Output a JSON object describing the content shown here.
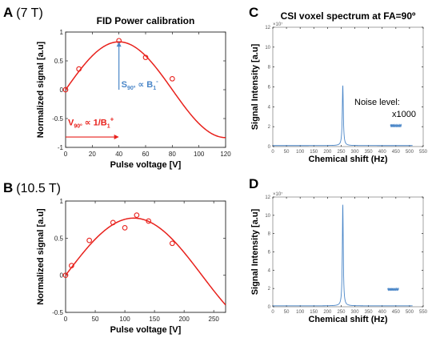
{
  "panels": {
    "A": {
      "letter": "A",
      "field": "(7 T)"
    },
    "B": {
      "letter": "B",
      "field": "(10.5 T)"
    },
    "C": {
      "letter": "C"
    },
    "D": {
      "letter": "D"
    }
  },
  "annotations": {
    "s90": "S",
    "s90_sub": "90º",
    "s90_tail": " ∝ B",
    "s90_sub2": "1",
    "s90_sup": "-",
    "v90": "V",
    "v90_sub": "90º",
    "v90_tail": " ∝ 1/B",
    "v90_sub2": "1",
    "v90_sup": "+",
    "noise_level": "Noise level:",
    "x1000": "x1000",
    "color_red": "#e8211c",
    "color_blue": "#4a86c8"
  },
  "chart_data": [
    {
      "id": "A",
      "type": "scatter",
      "title": "FID Power calibration",
      "xlabel": "Pulse voltage [V]",
      "ylabel": "Normalized signal [a.u]",
      "xlim": [
        0,
        120
      ],
      "ylim": [
        -1,
        1
      ],
      "xticks": [
        0,
        20,
        40,
        60,
        80,
        100,
        120
      ],
      "yticks": [
        -1,
        -0.5,
        0,
        0.5,
        1
      ],
      "xtick_labels": [
        "0",
        "20",
        "40",
        "60",
        "80",
        "100",
        "120"
      ],
      "ytick_labels": [
        "-1",
        "-0.5",
        "0",
        "0.5",
        "1"
      ],
      "grid": false,
      "points": [
        {
          "x": 0,
          "y": 0
        },
        {
          "x": 10,
          "y": 0.36
        },
        {
          "x": 40,
          "y": 0.85
        },
        {
          "x": 60,
          "y": 0.56
        },
        {
          "x": 80,
          "y": 0.19
        }
      ],
      "fit": {
        "amplitude": 0.83,
        "v90": 40
      },
      "color": "#e8211c"
    },
    {
      "id": "B",
      "type": "scatter",
      "title": "",
      "xlabel": "Pulse voltage [V]",
      "ylabel": "Normalized signal [a.u]",
      "xlim": [
        0,
        270
      ],
      "ylim": [
        -0.5,
        1
      ],
      "xticks": [
        0,
        50,
        100,
        150,
        200,
        250
      ],
      "yticks": [
        -0.5,
        0,
        0.5,
        1
      ],
      "xtick_labels": [
        "0",
        "50",
        "100",
        "150",
        "200",
        "250"
      ],
      "ytick_labels": [
        "-0.5",
        "0",
        "0.5",
        "1"
      ],
      "grid": false,
      "points": [
        {
          "x": 0,
          "y": 0
        },
        {
          "x": 10,
          "y": 0.13
        },
        {
          "x": 40,
          "y": 0.47
        },
        {
          "x": 80,
          "y": 0.71
        },
        {
          "x": 100,
          "y": 0.64
        },
        {
          "x": 120,
          "y": 0.81
        },
        {
          "x": 140,
          "y": 0.73
        },
        {
          "x": 180,
          "y": 0.43
        }
      ],
      "fit": {
        "amplitude": 0.77,
        "v90": 115
      },
      "color": "#e8211c"
    },
    {
      "id": "C",
      "type": "line",
      "title": "CSI voxel spectrum at FA=90º",
      "xlabel": "Chemical shift (Hz)",
      "ylabel": "Signal Intensity [a.u]",
      "xlim": [
        0,
        550
      ],
      "ylim": [
        0,
        12
      ],
      "y_exponent_label": "×10⁷",
      "xticks": [
        0,
        50,
        100,
        150,
        200,
        250,
        300,
        350,
        400,
        450,
        500,
        550
      ],
      "yticks": [
        0,
        2,
        4,
        6,
        8,
        10,
        12
      ],
      "xtick_labels": [
        "0",
        "50",
        "100",
        "150",
        "200",
        "250",
        "300",
        "350",
        "400",
        "450",
        "500",
        "550"
      ],
      "ytick_labels": [
        "0",
        "2",
        "4",
        "6",
        "8",
        "10",
        "12"
      ],
      "grid": false,
      "peak": {
        "center": 256,
        "height": 6.1,
        "width": 2.2
      },
      "baseline": 0.1,
      "x_range": [
        0,
        511
      ],
      "noise_inset": {
        "x": [
          430,
          470
        ],
        "y_center": 2.1,
        "amp": 0.2
      },
      "color": "#4a86c8"
    },
    {
      "id": "D",
      "type": "line",
      "title": "",
      "xlabel": "Chemical shift (Hz)",
      "ylabel": "Signal Intensity [a.u]",
      "xlim": [
        0,
        550
      ],
      "ylim": [
        0,
        12
      ],
      "y_exponent_label": "×10⁷",
      "xticks": [
        0,
        50,
        100,
        150,
        200,
        250,
        300,
        350,
        400,
        450,
        500,
        550
      ],
      "yticks": [
        0,
        2,
        4,
        6,
        8,
        10,
        12
      ],
      "xtick_labels": [
        "0",
        "50",
        "100",
        "150",
        "200",
        "250",
        "300",
        "350",
        "400",
        "450",
        "500",
        "550"
      ],
      "ytick_labels": [
        "0",
        "2",
        "4",
        "6",
        "8",
        "10",
        "12"
      ],
      "grid": false,
      "peak": {
        "center": 256,
        "height": 11.2,
        "width": 2.0
      },
      "baseline": 0.1,
      "x_range": [
        0,
        511
      ],
      "noise_inset": {
        "x": [
          420,
          460
        ],
        "y_center": 1.9,
        "amp": 0.2
      },
      "color": "#4a86c8"
    }
  ]
}
